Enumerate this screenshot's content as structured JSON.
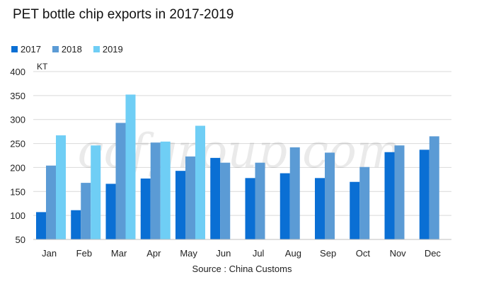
{
  "chart_data": {
    "type": "bar",
    "title": "PET bottle chip exports in 2017-2019",
    "ylabel": "KT",
    "xlabel": "",
    "ylim": [
      50,
      400
    ],
    "yticks": [
      50,
      100,
      150,
      200,
      250,
      300,
      350,
      400
    ],
    "categories": [
      "Jan",
      "Feb",
      "Mar",
      "Apr",
      "May",
      "Jun",
      "Jul",
      "Aug",
      "Sep",
      "Oct",
      "Nov",
      "Dec"
    ],
    "series": [
      {
        "name": "2017",
        "color": "#0a6fd4",
        "values": [
          107,
          111,
          166,
          177,
          193,
          220,
          178,
          188,
          178,
          170,
          232,
          237
        ]
      },
      {
        "name": "2018",
        "color": "#5b9bd5",
        "values": [
          204,
          168,
          293,
          252,
          223,
          210,
          210,
          242,
          231,
          201,
          246,
          265
        ]
      },
      {
        "name": "2019",
        "color": "#6fcef5",
        "values": [
          267,
          246,
          352,
          254,
          287,
          null,
          null,
          null,
          null,
          null,
          null,
          null
        ]
      }
    ],
    "source": "Source : China Customs",
    "watermark": "ccfgroup.com"
  }
}
